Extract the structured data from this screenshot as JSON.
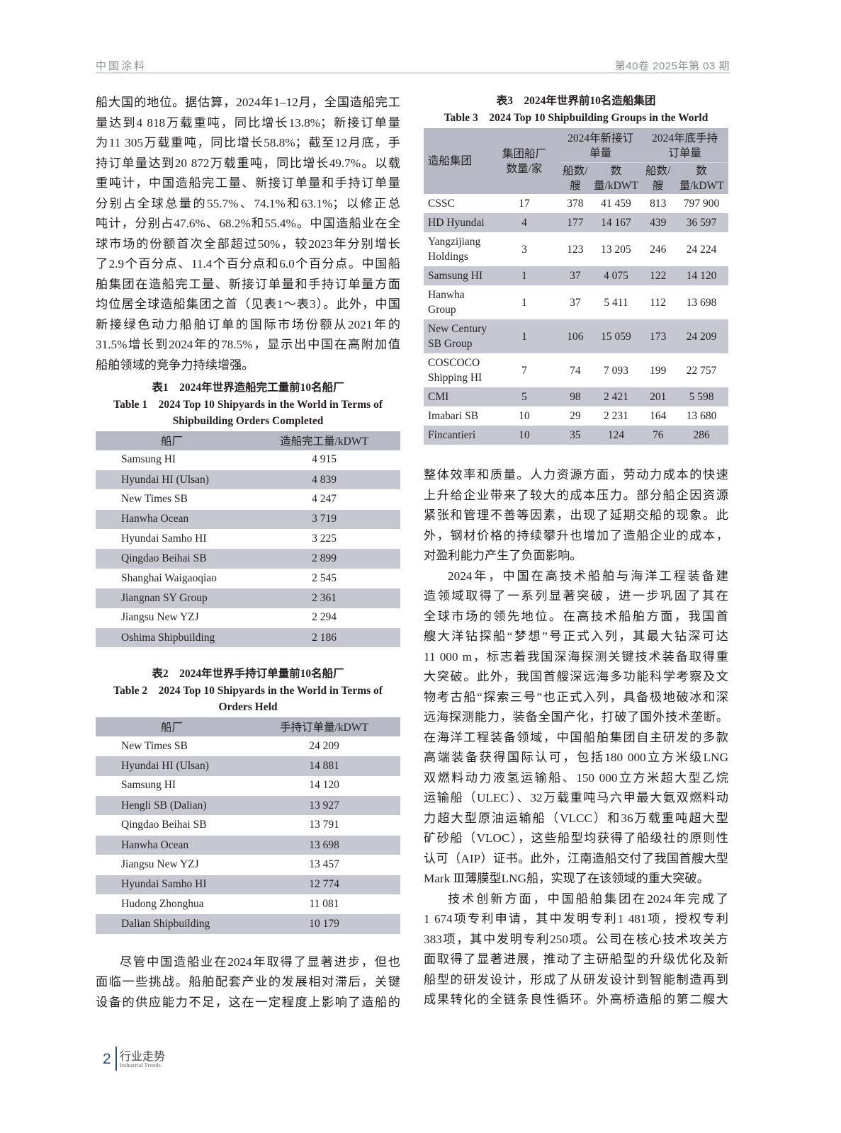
{
  "header": {
    "journal": "中国涂料",
    "issue": "第40卷  2025年第 03 期"
  },
  "left_paragraph": [
    "船大国的地位。据估算，2024年1–12月，全国造船完工",
    "量达到4 818万载重吨，同比增长13.8%；新接订单量",
    "为11 305万载重吨，同比增长58.8%；截至12月底，手",
    "持订单量达到20 872万载重吨，同比增长49.7%。以载",
    "重吨计，中国造船完工量、新接订单量和手持订单量",
    "分别占全球总量的55.7%、74.1%和63.1%；以修正总",
    "吨计，分别占47.6%、68.2%和55.4%。中国造船业在全",
    "球市场的份额首次全部超过50%，较2023年分别增长",
    "了2.9个百分点、11.4个百分点和6.0个百分点。中国船",
    "舶集团在造船完工量、新接订单量和手持订单量方面",
    "均位居全球造船集团之首（见表1～表3）。此外，中国",
    "新接绿色动力船舶订单的国际市场份额从2021年的",
    "31.5%增长到2024年的78.5%，显示出中国在高附加值",
    "船舶领域的竞争力持续增强。"
  ],
  "table1": {
    "caption_zh": "表1　2024年世界造船完工量前10名船厂",
    "caption_en1": "Table 1　2024 Top 10 Shipyards in the World in Terms of",
    "caption_en2": "Shipbuilding Orders Completed",
    "headers": [
      "船厂",
      "造船完工量/kDWT"
    ],
    "rows": [
      [
        "Samsung HI",
        "4 915"
      ],
      [
        "Hyundai HI (Ulsan)",
        "4 839"
      ],
      [
        "New Times SB",
        "4 247"
      ],
      [
        "Hanwha Ocean",
        "3 719"
      ],
      [
        "Hyundai Samho HI",
        "3 225"
      ],
      [
        "Qingdao Beihai SB",
        "2 899"
      ],
      [
        "Shanghai Waigaoqiao",
        "2 545"
      ],
      [
        "Jiangnan SY Group",
        "2 361"
      ],
      [
        "Jiangsu New YZJ",
        "2 294"
      ],
      [
        "Oshima Shipbuilding",
        "2 186"
      ]
    ]
  },
  "table2": {
    "caption_zh": "表2　2024年世界手持订单量前10名船厂",
    "caption_en1": "Table 2　2024 Top 10 Shipyards in the World in Terms of",
    "caption_en2": "Orders Held",
    "headers": [
      "船厂",
      "手持订单量/kDWT"
    ],
    "rows": [
      [
        "New Times SB",
        "24 209"
      ],
      [
        "Hyundai HI (Ulsan)",
        "14 881"
      ],
      [
        "Samsung HI",
        "14 120"
      ],
      [
        "Hengli SB (Dalian)",
        "13 927"
      ],
      [
        "Qingdao Beihai SB",
        "13 791"
      ],
      [
        "Hanwha Ocean",
        "13 698"
      ],
      [
        "Jiangsu New YZJ",
        "13 457"
      ],
      [
        "Hyundai Samho HI",
        "12 774"
      ],
      [
        "Hudong Zhonghua",
        "11 081"
      ],
      [
        "Dalian Shipbuilding",
        "10 179"
      ]
    ]
  },
  "left_paragraph2": [
    "尽管中国造船业在2024年取得了显著进步，但也",
    "面临一些挑战。船舶配套产业的发展相对滞后，关键",
    "设备的供应能力不足，这在一定程度上影响了造船的"
  ],
  "table3": {
    "caption_zh": "表3　2024年世界前10名造船集团",
    "caption_en": "Table 3　2024 Top 10 Shipbuilding Groups in the World",
    "headers": {
      "group": "造船集团",
      "yards": "集团船厂数量/家",
      "new_orders": "2024年新接订单量",
      "held": "2024年底手持订单量",
      "ships": "船数/艘",
      "kdwt": "数量/kDWT"
    },
    "rows": [
      [
        "CSSC",
        "17",
        "378",
        "41 459",
        "813",
        "797 900"
      ],
      [
        "HD Hyundai",
        "4",
        "177",
        "14 167",
        "439",
        "36 597"
      ],
      [
        "Yangzijiang Holdings",
        "3",
        "123",
        "13 205",
        "246",
        "24 224"
      ],
      [
        "Samsung HI",
        "1",
        "37",
        "4 075",
        "122",
        "14 120"
      ],
      [
        "Hanwha Group",
        "1",
        "37",
        "5 411",
        "112",
        "13 698"
      ],
      [
        "New Century SB Group",
        "1",
        "106",
        "15 059",
        "173",
        "24 209"
      ],
      [
        "COSCOCO Shipping HI",
        "7",
        "74",
        "7 093",
        "199",
        "22 757"
      ],
      [
        "CMI",
        "5",
        "98",
        "2 421",
        "201",
        "5 598"
      ],
      [
        "Imabari SB",
        "10",
        "29",
        "2 231",
        "164",
        "13 680"
      ],
      [
        "Fincantieri",
        "10",
        "35",
        "124",
        "76",
        "286"
      ]
    ]
  },
  "right_paragraphs": [
    [
      "整体效率和质量。人力资源方面，劳动力成本的快速",
      "上升给企业带来了较大的成本压力。部分船企因资源",
      "紧张和管理不善等因素，出现了延期交船的现象。此",
      "外，钢材价格的持续攀升也增加了造船企业的成本，",
      "对盈利能力产生了负面影响。"
    ],
    [
      "2024年，中国在高技术船舶与海洋工程装备建",
      "造领域取得了一系列显著突破，进一步巩固了其在",
      "全球市场的领先地位。在高技术船舶方面，我国首",
      "艘大洋钻探船“梦想”号正式入列，其最大钻深可达",
      "11 000 m，标志着我国深海探测关键技术装备取得重",
      "大突破。此外，我国首艘深远海多功能科学考察及文",
      "物考古船“探索三号”也正式入列，具备极地破冰和深",
      "远海探测能力，装备全国产化，打破了国外技术垄断。",
      "在海洋工程装备领域，中国船舶集团自主研发的多款",
      "高端装备获得国际认可，包括180 000立方米级LNG",
      "双燃料动力液氢运输船、150 000立方米超大型乙烷",
      "运输船（ULEC）、32万载重吨马六甲最大氨双燃料动",
      "力超大型原油运输船（VLCC）和36万载重吨超大型",
      "矿砂船（VLOC），这些船型均获得了船级社的原则性",
      "认可（AIP）证书。此外，江南造船交付了我国首艘大型",
      "Mark Ⅲ薄膜型LNG船，实现了在该领域的重大突破。"
    ],
    [
      "技术创新方面，中国船舶集团在2024年完成了",
      "1 674项专利申请，其中发明专利1 481项，授权专利",
      "383项，其中发明专利250项。公司在核心技术攻关方",
      "面取得了显著进展，推动了主研船型的升级优化及新",
      "船型的研发设计，形成了从研发设计到智能制造再到",
      "成果转化的全链条良性循环。外高桥造船的第二艘大"
    ]
  ],
  "footer": {
    "page": "2",
    "section_zh": "行业走势",
    "section_en": "Industrial Trends"
  }
}
